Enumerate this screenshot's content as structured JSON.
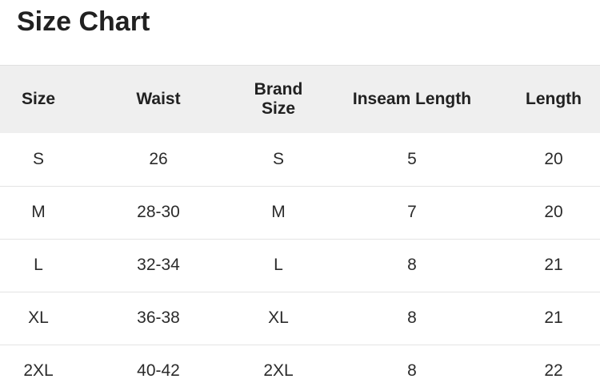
{
  "page": {
    "title": "Size Chart"
  },
  "colors": {
    "header_bg": "#efefef",
    "row_border": "#e4e4e4",
    "text": "#212121",
    "background": "#ffffff"
  },
  "size_table": {
    "columns": [
      {
        "key": "size",
        "label": "Size"
      },
      {
        "key": "waist",
        "label": "Waist"
      },
      {
        "key": "brand_size",
        "label": "Brand Size"
      },
      {
        "key": "inseam_length",
        "label": "Inseam Length"
      },
      {
        "key": "length",
        "label": "Length"
      }
    ],
    "rows": [
      {
        "size": "S",
        "waist": "26",
        "brand_size": "S",
        "inseam_length": "5",
        "length": "20"
      },
      {
        "size": "M",
        "waist": "28-30",
        "brand_size": "M",
        "inseam_length": "7",
        "length": "20"
      },
      {
        "size": "L",
        "waist": "32-34",
        "brand_size": "L",
        "inseam_length": "8",
        "length": "21"
      },
      {
        "size": "XL",
        "waist": "36-38",
        "brand_size": "XL",
        "inseam_length": "8",
        "length": "21"
      },
      {
        "size": "2XL",
        "waist": "40-42",
        "brand_size": "2XL",
        "inseam_length": "8",
        "length": "22"
      }
    ]
  }
}
